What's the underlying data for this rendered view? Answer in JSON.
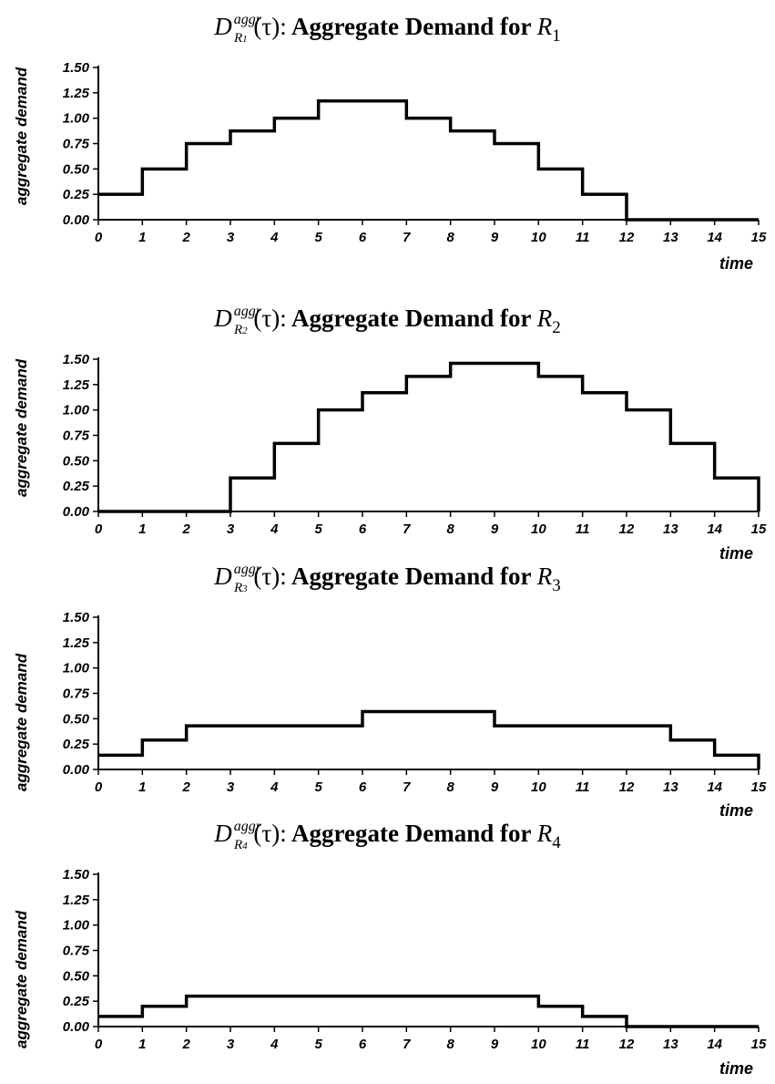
{
  "chart_data": [
    {
      "type": "line",
      "step": true,
      "title_symbol": "D",
      "title_superscript": "aggr",
      "title_subscript": "R",
      "title_subscript_index": "1",
      "title_argument": "(τ):",
      "title_text": "Aggregate Demand for",
      "title_resource": "R",
      "title_resource_index": "1",
      "xlabel": "time",
      "ylabel": "aggregate demand",
      "xlim": [
        0,
        15
      ],
      "ylim": [
        0,
        1.5
      ],
      "x_ticks": [
        "0",
        "1",
        "2",
        "3",
        "4",
        "5",
        "6",
        "7",
        "8",
        "9",
        "10",
        "11",
        "12",
        "13",
        "14",
        "15"
      ],
      "y_ticks": [
        "0.00",
        "0.25",
        "0.50",
        "0.75",
        "1.00",
        "1.25",
        "1.50"
      ],
      "x": [
        0,
        1,
        2,
        3,
        4,
        5,
        6,
        7,
        8,
        9,
        10,
        11,
        12,
        13,
        14
      ],
      "values": [
        0.25,
        0.5,
        0.75,
        0.875,
        1.0,
        1.17,
        1.17,
        1.0,
        0.875,
        0.75,
        0.5,
        0.25,
        0,
        0,
        0
      ]
    },
    {
      "type": "line",
      "step": true,
      "title_symbol": "D",
      "title_superscript": "aggr",
      "title_subscript": "R",
      "title_subscript_index": "2",
      "title_argument": "(τ):",
      "title_text": "Aggregate Demand for",
      "title_resource": "R",
      "title_resource_index": "2",
      "xlabel": "time",
      "ylabel": "aggregate demand",
      "xlim": [
        0,
        15
      ],
      "ylim": [
        0,
        1.5
      ],
      "x_ticks": [
        "0",
        "1",
        "2",
        "3",
        "4",
        "5",
        "6",
        "7",
        "8",
        "9",
        "10",
        "11",
        "12",
        "13",
        "14",
        "15"
      ],
      "y_ticks": [
        "0.00",
        "0.25",
        "0.50",
        "0.75",
        "1.00",
        "1.25",
        "1.50"
      ],
      "x": [
        0,
        1,
        2,
        3,
        4,
        5,
        6,
        7,
        8,
        9,
        10,
        11,
        12,
        13,
        14
      ],
      "values": [
        0,
        0,
        0,
        0.33,
        0.67,
        1.0,
        1.17,
        1.33,
        1.46,
        1.46,
        1.33,
        1.17,
        1.0,
        0.67,
        0.33
      ]
    },
    {
      "type": "line",
      "step": true,
      "title_symbol": "D",
      "title_superscript": "aggr",
      "title_subscript": "R",
      "title_subscript_index": "3",
      "title_argument": "(τ):",
      "title_text": "Aggregate Demand for",
      "title_resource": "R",
      "title_resource_index": "3",
      "xlabel": "time",
      "ylabel": "aggregate demand",
      "xlim": [
        0,
        15
      ],
      "ylim": [
        0,
        1.5
      ],
      "x_ticks": [
        "0",
        "1",
        "2",
        "3",
        "4",
        "5",
        "6",
        "7",
        "8",
        "9",
        "10",
        "11",
        "12",
        "13",
        "14",
        "15"
      ],
      "y_ticks": [
        "0.00",
        "0.25",
        "0.50",
        "0.75",
        "1.00",
        "1.25",
        "1.50"
      ],
      "x": [
        0,
        1,
        2,
        3,
        4,
        5,
        6,
        7,
        8,
        9,
        10,
        11,
        12,
        13,
        14
      ],
      "values": [
        0.14,
        0.29,
        0.43,
        0.43,
        0.43,
        0.43,
        0.57,
        0.57,
        0.57,
        0.43,
        0.43,
        0.43,
        0.43,
        0.29,
        0.14
      ]
    },
    {
      "type": "line",
      "step": true,
      "title_symbol": "D",
      "title_superscript": "aggr",
      "title_subscript": "R",
      "title_subscript_index": "4",
      "title_argument": "(τ):",
      "title_text": "Aggregate Demand for",
      "title_resource": "R",
      "title_resource_index": "4",
      "xlabel": "time",
      "ylabel": "aggregate demand",
      "xlim": [
        0,
        15
      ],
      "ylim": [
        0,
        1.5
      ],
      "x_ticks": [
        "0",
        "1",
        "2",
        "3",
        "4",
        "5",
        "6",
        "7",
        "8",
        "9",
        "10",
        "11",
        "12",
        "13",
        "14",
        "15"
      ],
      "y_ticks": [
        "0.00",
        "0.25",
        "0.50",
        "0.75",
        "1.00",
        "1.25",
        "1.50"
      ],
      "x": [
        0,
        1,
        2,
        3,
        4,
        5,
        6,
        7,
        8,
        9,
        10,
        11,
        12,
        13,
        14
      ],
      "values": [
        0.1,
        0.2,
        0.3,
        0.3,
        0.3,
        0.3,
        0.3,
        0.3,
        0.3,
        0.3,
        0.2,
        0.1,
        0,
        0,
        0
      ]
    }
  ]
}
